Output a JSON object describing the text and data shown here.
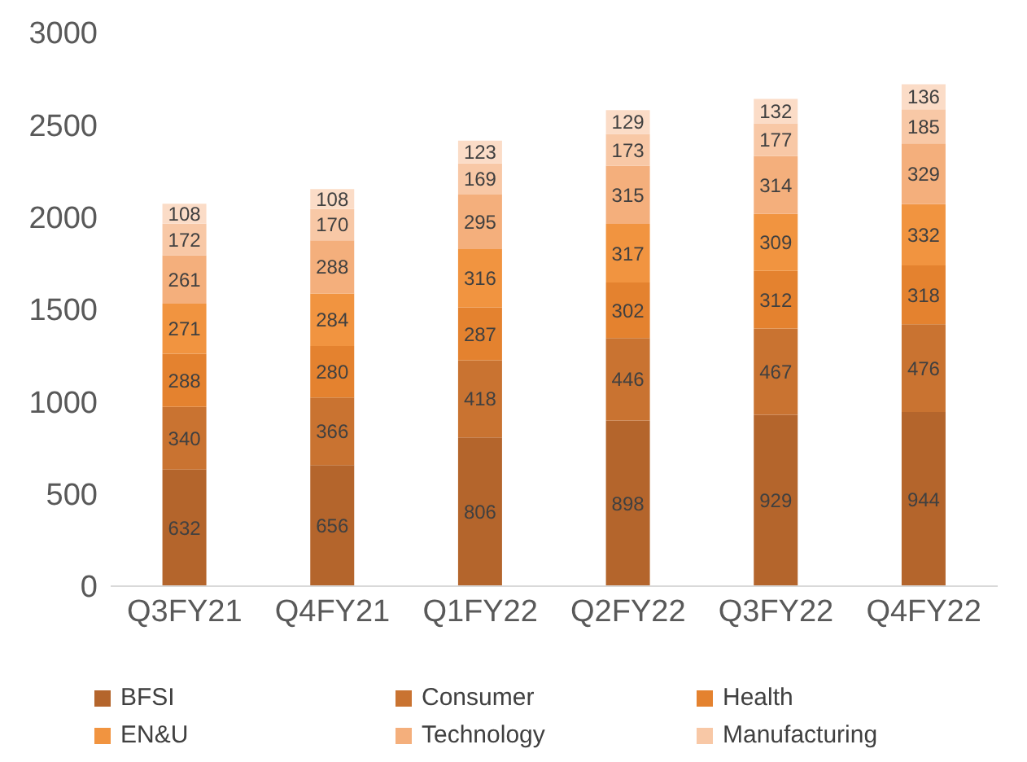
{
  "chart_data": {
    "type": "bar",
    "stacked": true,
    "categories": [
      "Q3FY21",
      "Q4FY21",
      "Q1FY22",
      "Q2FY22",
      "Q3FY22",
      "Q4FY22"
    ],
    "series": [
      {
        "name": "BFSI",
        "color": "#b4652c",
        "values": [
          632,
          656,
          806,
          898,
          929,
          944
        ]
      },
      {
        "name": "Consumer",
        "color": "#c97331",
        "values": [
          340,
          366,
          418,
          446,
          467,
          476
        ]
      },
      {
        "name": "Health",
        "color": "#e4822f",
        "values": [
          288,
          280,
          287,
          302,
          312,
          318
        ]
      },
      {
        "name": "EN&U",
        "color": "#f19440",
        "values": [
          271,
          284,
          316,
          317,
          309,
          332
        ]
      },
      {
        "name": "Technology",
        "color": "#f4af7c",
        "values": [
          261,
          288,
          295,
          315,
          314,
          329
        ]
      },
      {
        "name": "Manufacturing",
        "color": "#f8c8a6",
        "values": [
          172,
          170,
          169,
          173,
          177,
          185
        ]
      },
      {
        "name": null,
        "color": "#fbdcc7",
        "values": [
          108,
          108,
          123,
          129,
          132,
          136
        ]
      }
    ],
    "ylim": [
      0,
      3000
    ],
    "yticks": [
      0,
      500,
      1000,
      1500,
      2000,
      2500,
      3000
    ],
    "grid": false,
    "legend": "bottom",
    "data_labels": true
  }
}
